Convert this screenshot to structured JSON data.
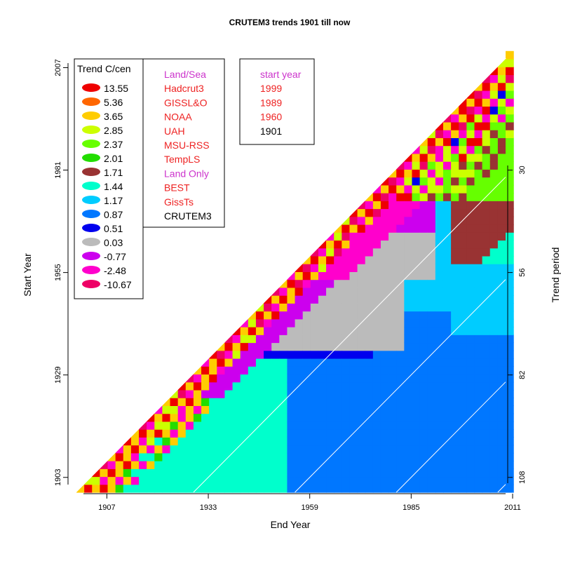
{
  "chart_data": {
    "type": "heatmap",
    "title": "CRUTEM3 trends 1901 till now",
    "xlabel": "End Year",
    "ylabel": "Start Year",
    "right_label": "Trend period",
    "x_ticks": [
      1907,
      1933,
      1959,
      1985,
      2011
    ],
    "y_ticks": [
      1903,
      1929,
      1955,
      1981,
      2007
    ],
    "period_ticks": [
      30,
      56,
      82,
      108
    ],
    "xlim": [
      1907,
      2011
    ],
    "ylim": [
      1903,
      2007
    ],
    "legend": {
      "title": "Trend C/cen",
      "placement": "top-left",
      "entries": [
        {
          "label": "13.55",
          "color": "#ee0000"
        },
        {
          "label": "5.36",
          "color": "#ff6600"
        },
        {
          "label": "3.65",
          "color": "#ffcc00"
        },
        {
          "label": "2.85",
          "color": "#ccff00"
        },
        {
          "label": "2.37",
          "color": "#66ff00"
        },
        {
          "label": "2.01",
          "color": "#22dd00"
        },
        {
          "label": "1.71",
          "color": "#993333"
        },
        {
          "label": "1.44",
          "color": "#00ffcc"
        },
        {
          "label": "1.17",
          "color": "#00ccff"
        },
        {
          "label": "0.87",
          "color": "#0077ff"
        },
        {
          "label": "0.51",
          "color": "#0000ee"
        },
        {
          "label": "0.03",
          "color": "#bbbbbb"
        },
        {
          "label": "-0.77",
          "color": "#cc00ee"
        },
        {
          "label": "-2.48",
          "color": "#ff00cc"
        },
        {
          "label": "-10.67",
          "color": "#ee0066"
        }
      ]
    },
    "datasets_legend": [
      {
        "label": "Land/Sea",
        "color": "#cc33cc"
      },
      {
        "label": "Hadcrut3",
        "color": "#ee2222"
      },
      {
        "label": "GISSL&O",
        "color": "#ee2222"
      },
      {
        "label": "NOAA",
        "color": "#ee2222"
      },
      {
        "label": "UAH",
        "color": "#ee2222"
      },
      {
        "label": "MSU-RSS",
        "color": "#ee2222"
      },
      {
        "label": "TempLS",
        "color": "#ee2222"
      },
      {
        "label": "Land Only",
        "color": "#cc33cc"
      },
      {
        "label": "BEST",
        "color": "#ee2222"
      },
      {
        "label": "GissTs",
        "color": "#ee2222"
      },
      {
        "label": "CRUTEM3",
        "color": "#000000"
      }
    ],
    "start_year_legend": [
      {
        "label": "start year",
        "color": "#cc33cc"
      },
      {
        "label": "1999",
        "color": "#ee2222"
      },
      {
        "label": "1989",
        "color": "#ee2222"
      },
      {
        "label": "1960",
        "color": "#ee2222"
      },
      {
        "label": "1901",
        "color": "#000000"
      }
    ]
  }
}
